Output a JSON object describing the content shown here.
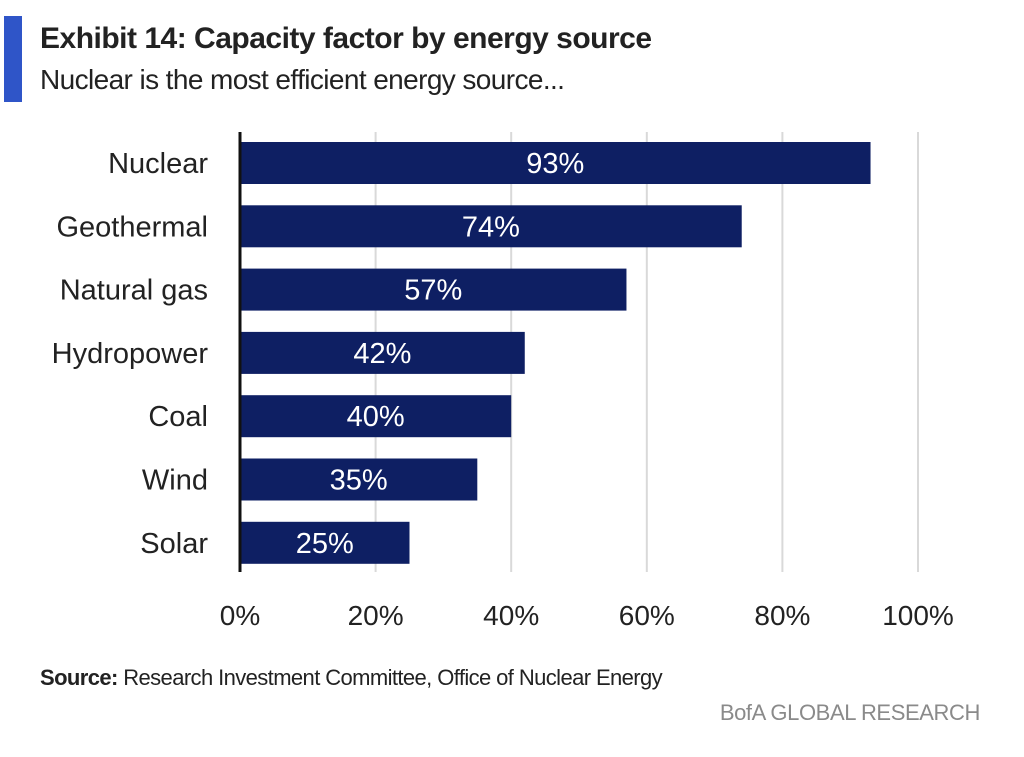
{
  "header": {
    "title": "Exhibit 14: Capacity factor by energy source",
    "subtitle": "Nuclear is the most efficient energy source..."
  },
  "footer": {
    "source_label": "Source:",
    "source_text": "Research Investment Committee, Office of Nuclear Energy",
    "brand": "BofA GLOBAL RESEARCH"
  },
  "colors": {
    "accent": "#2f55c8",
    "bar": "#0e1f63",
    "grid": "#d9d9d9",
    "axis": "#111111"
  },
  "chart_data": {
    "type": "bar",
    "orientation": "horizontal",
    "title": "Exhibit 14: Capacity factor by energy source",
    "subtitle": "Nuclear is the most efficient energy source...",
    "categories": [
      "Nuclear",
      "Geothermal",
      "Natural gas",
      "Hydropower",
      "Coal",
      "Wind",
      "Solar"
    ],
    "values": [
      93,
      74,
      57,
      42,
      40,
      35,
      25
    ],
    "data_labels": [
      "93%",
      "74%",
      "57%",
      "42%",
      "40%",
      "35%",
      "25%"
    ],
    "xlim": [
      0,
      100
    ],
    "x_ticks": [
      "0%",
      "20%",
      "40%",
      "60%",
      "80%",
      "100%"
    ],
    "xlabel": "",
    "ylabel": "",
    "grid": true,
    "legend": false
  }
}
